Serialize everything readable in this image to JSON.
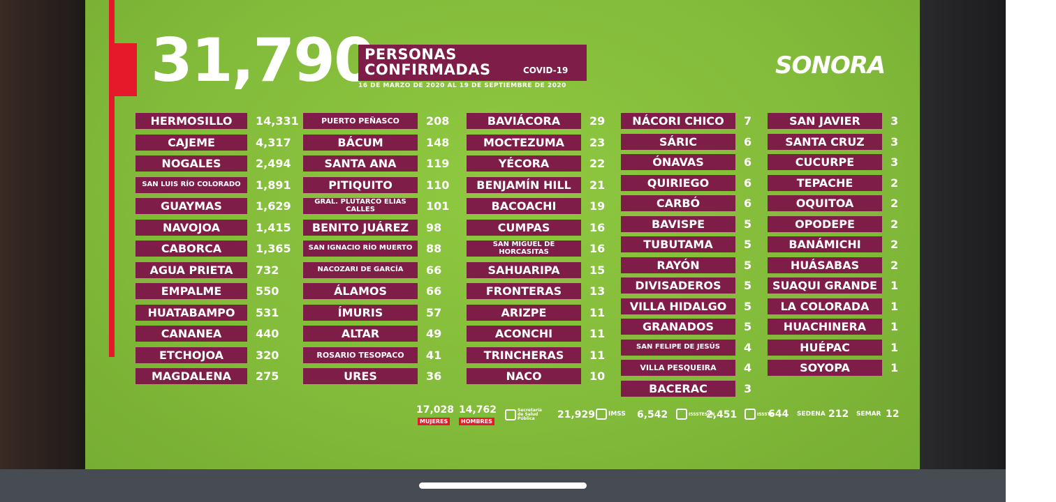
{
  "header": {
    "total": "31,790",
    "title_line1": "PERSONAS",
    "title_line2": "CONFIRMADAS",
    "title_tag": "COVID-19",
    "date_range": "16 DE MARZO DE 2020 AL 19 DE SEPTIEMBRE DE 2020",
    "logo": "SONORA"
  },
  "columns": [
    [
      {
        "name": "HERMOSILLO",
        "value": "14,331"
      },
      {
        "name": "CAJEME",
        "value": "4,317"
      },
      {
        "name": "NOGALES",
        "value": "2,494"
      },
      {
        "name": "SAN LUIS RÍO COLORADO",
        "value": "1,891"
      },
      {
        "name": "GUAYMAS",
        "value": "1,629"
      },
      {
        "name": "NAVOJOA",
        "value": "1,415"
      },
      {
        "name": "CABORCA",
        "value": "1,365"
      },
      {
        "name": "AGUA PRIETA",
        "value": "732"
      },
      {
        "name": "EMPALME",
        "value": "550"
      },
      {
        "name": "HUATABAMPO",
        "value": "531"
      },
      {
        "name": "CANANEA",
        "value": "440"
      },
      {
        "name": "ETCHOJOA",
        "value": "320"
      },
      {
        "name": "MAGDALENA",
        "value": "275"
      }
    ],
    [
      {
        "name": "PUERTO PEÑASCO",
        "value": "208"
      },
      {
        "name": "BÁCUM",
        "value": "148"
      },
      {
        "name": "SANTA ANA",
        "value": "119"
      },
      {
        "name": "PITIQUITO",
        "value": "110"
      },
      {
        "name": "GRAL. PLUTARCO ELÍAS CALLES",
        "value": "101"
      },
      {
        "name": "BENITO JUÁREZ",
        "value": "98"
      },
      {
        "name": "SAN IGNACIO RÍO MUERTO",
        "value": "88"
      },
      {
        "name": "NACOZARI DE GARCÍA",
        "value": "66"
      },
      {
        "name": "ÁLAMOS",
        "value": "66"
      },
      {
        "name": "ÍMURIS",
        "value": "57"
      },
      {
        "name": "ALTAR",
        "value": "49"
      },
      {
        "name": "ROSARIO TESOPACO",
        "value": "41"
      },
      {
        "name": "URES",
        "value": "36"
      }
    ],
    [
      {
        "name": "BAVIÁCORA",
        "value": "29"
      },
      {
        "name": "MOCTEZUMA",
        "value": "23"
      },
      {
        "name": "YÉCORA",
        "value": "22"
      },
      {
        "name": "BENJAMÍN HILL",
        "value": "21"
      },
      {
        "name": "BACOACHI",
        "value": "19"
      },
      {
        "name": "CUMPAS",
        "value": "16"
      },
      {
        "name": "SAN MIGUEL DE HORCASITAS",
        "value": "16"
      },
      {
        "name": "SAHUARIPA",
        "value": "15"
      },
      {
        "name": "FRONTERAS",
        "value": "13"
      },
      {
        "name": "ARIZPE",
        "value": "11"
      },
      {
        "name": "ACONCHI",
        "value": "11"
      },
      {
        "name": "TRINCHERAS",
        "value": "11"
      },
      {
        "name": "NACO",
        "value": "10"
      }
    ],
    [
      {
        "name": "NÁCORI CHICO",
        "value": "7"
      },
      {
        "name": "SÁRIC",
        "value": "6"
      },
      {
        "name": "ÓNAVAS",
        "value": "6"
      },
      {
        "name": "QUIRIEGO",
        "value": "6"
      },
      {
        "name": "CARBÓ",
        "value": "6"
      },
      {
        "name": "BAVISPE",
        "value": "5"
      },
      {
        "name": "TUBUTAMA",
        "value": "5"
      },
      {
        "name": "RAYÓN",
        "value": "5"
      },
      {
        "name": "DIVISADEROS",
        "value": "5"
      },
      {
        "name": "VILLA HIDALGO",
        "value": "5"
      },
      {
        "name": "GRANADOS",
        "value": "5"
      },
      {
        "name": "SAN FELIPE DE JESÚS",
        "value": "4"
      },
      {
        "name": "VILLA PESQUEIRA",
        "value": "4"
      },
      {
        "name": "BACERAC",
        "value": "3"
      }
    ],
    [
      {
        "name": "SAN JAVIER",
        "value": "3"
      },
      {
        "name": "SANTA CRUZ",
        "value": "3"
      },
      {
        "name": "CUCURPE",
        "value": "3"
      },
      {
        "name": "TEPACHE",
        "value": "2"
      },
      {
        "name": "OQUITOA",
        "value": "2"
      },
      {
        "name": "OPODEPE",
        "value": "2"
      },
      {
        "name": "BANÁMICHI",
        "value": "2"
      },
      {
        "name": "HUÁSABAS",
        "value": "2"
      },
      {
        "name": "SUAQUI GRANDE",
        "value": "1"
      },
      {
        "name": "LA COLORADA",
        "value": "1"
      },
      {
        "name": "HUACHINERA",
        "value": "1"
      },
      {
        "name": "HUÉPAC",
        "value": "1"
      },
      {
        "name": "SOYOPA",
        "value": "1"
      }
    ]
  ],
  "footer": {
    "mujeres_count": "17,028",
    "mujeres_label": "MUJERES",
    "hombres_count": "14,762",
    "hombres_label": "HOMBRES",
    "inst1_label": "Secretaría de Salud Pública",
    "inst1_value": "21,929",
    "imss_label": "IMSS",
    "imss_value": "6,542",
    "isssteson_label": "ISSSTESON",
    "isssteson_value": "2,451",
    "issste_label": "ISSSTE",
    "issste_value": "644",
    "sedena_label": "SEDENA",
    "sedena_value": "212",
    "semar_label": "SEMAR",
    "semar_value": "12"
  },
  "icons": [
    "sonora-logo-icon",
    "salud-icon",
    "imss-icon",
    "isssteson-icon",
    "issste-icon"
  ]
}
